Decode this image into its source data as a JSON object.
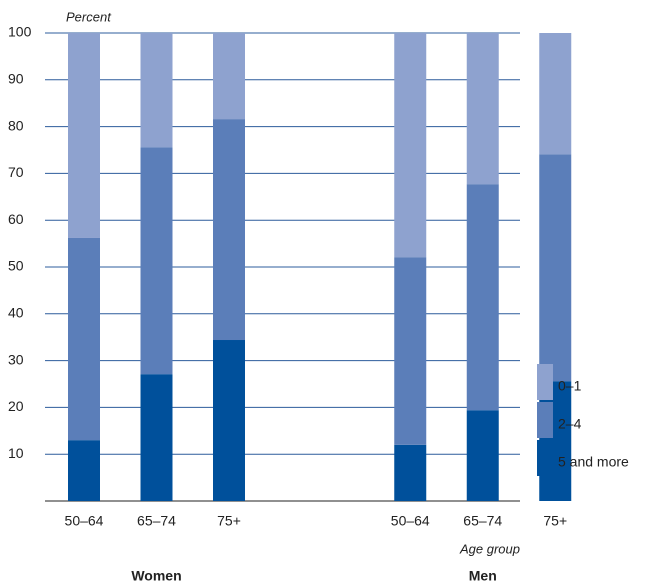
{
  "chart_data": {
    "type": "stacked_bar",
    "y_label": "Percent",
    "x_label": "Age group",
    "groups": [
      {
        "name": "Women",
        "categories": [
          "50–64",
          "65–74",
          "75+"
        ]
      },
      {
        "name": "Men",
        "categories": [
          "50–64",
          "65–74",
          "75+"
        ]
      }
    ],
    "series": [
      {
        "name": "5 and more",
        "color": "#00509b",
        "values": [
          13.0,
          27.1,
          34.4,
          12.0,
          19.4,
          25.6
        ]
      },
      {
        "name": "2–4",
        "color": "#5b7eb9",
        "values": [
          43.2,
          48.5,
          47.2,
          40.1,
          48.3,
          48.5
        ]
      },
      {
        "name": "0–1",
        "color": "#8ea2cf",
        "values": [
          43.8,
          24.4,
          18.4,
          47.9,
          32.3,
          25.9
        ]
      }
    ],
    "ylim": [
      0,
      100
    ],
    "yticks": [
      10,
      20,
      30,
      40,
      50,
      60,
      70,
      80,
      90,
      100
    ],
    "grid": true
  }
}
